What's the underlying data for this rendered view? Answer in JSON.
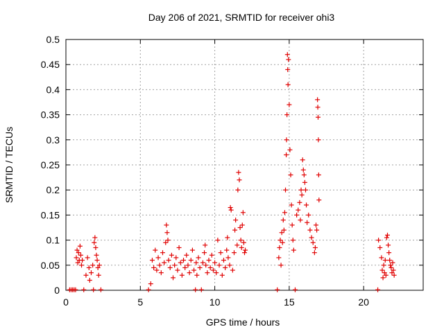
{
  "chart_data": {
    "type": "scatter",
    "title": "Day 206 of 2021, SRMTID for receiver ohi3",
    "xlabel": "GPS time / hours",
    "ylabel": "SRMTID / TECUs",
    "xlim": [
      0,
      24
    ],
    "ylim": [
      0,
      0.5
    ],
    "grid": true,
    "legend": "none",
    "marker": "+",
    "x_ticks": [
      0,
      5,
      10,
      15,
      20
    ],
    "y_ticks": [
      0,
      0.05,
      0.1,
      0.15,
      0.2,
      0.25,
      0.3,
      0.35,
      0.4,
      0.45,
      0.5
    ],
    "x_tick_labels": [
      "0",
      "5",
      "10",
      "15",
      "20"
    ],
    "y_tick_labels": [
      "0",
      "0.05",
      "0.1",
      "0.15",
      "0.2",
      "0.25",
      "0.3",
      "0.35",
      "0.4",
      "0.45",
      "0.5"
    ],
    "series": [
      {
        "name": "SRMTID",
        "color": "#e00000",
        "points": [
          [
            0.25,
            0.001
          ],
          [
            0.35,
            0.001
          ],
          [
            0.45,
            0.001
          ],
          [
            0.55,
            0.001
          ],
          [
            0.65,
            0.001
          ],
          [
            0.7,
            0.065
          ],
          [
            0.75,
            0.08
          ],
          [
            0.8,
            0.055
          ],
          [
            0.85,
            0.075
          ],
          [
            0.9,
            0.06
          ],
          [
            0.95,
            0.088
          ],
          [
            1.0,
            0.07
          ],
          [
            1.05,
            0.05
          ],
          [
            1.1,
            0.06
          ],
          [
            1.2,
            0.001
          ],
          [
            1.35,
            0.03
          ],
          [
            1.45,
            0.065
          ],
          [
            1.55,
            0.045
          ],
          [
            1.6,
            0.02
          ],
          [
            1.7,
            0.035
          ],
          [
            1.8,
            0.05
          ],
          [
            1.85,
            0.001
          ],
          [
            1.9,
            0.095
          ],
          [
            1.95,
            0.105
          ],
          [
            2.0,
            0.085
          ],
          [
            2.05,
            0.07
          ],
          [
            2.1,
            0.06
          ],
          [
            2.15,
            0.045
          ],
          [
            2.2,
            0.03
          ],
          [
            2.25,
            0.05
          ],
          [
            2.35,
            0.001
          ],
          [
            5.55,
            0.001
          ],
          [
            5.7,
            0.013
          ],
          [
            5.8,
            0.06
          ],
          [
            5.9,
            0.045
          ],
          [
            6.0,
            0.08
          ],
          [
            6.1,
            0.04
          ],
          [
            6.2,
            0.065
          ],
          [
            6.3,
            0.05
          ],
          [
            6.4,
            0.035
          ],
          [
            6.5,
            0.075
          ],
          [
            6.6,
            0.055
          ],
          [
            6.7,
            0.095
          ],
          [
            6.75,
            0.13
          ],
          [
            6.8,
            0.115
          ],
          [
            6.85,
            0.1
          ],
          [
            6.9,
            0.06
          ],
          [
            7.0,
            0.045
          ],
          [
            7.1,
            0.07
          ],
          [
            7.2,
            0.025
          ],
          [
            7.3,
            0.05
          ],
          [
            7.4,
            0.065
          ],
          [
            7.5,
            0.04
          ],
          [
            7.6,
            0.085
          ],
          [
            7.7,
            0.055
          ],
          [
            7.8,
            0.03
          ],
          [
            7.9,
            0.06
          ],
          [
            8.0,
            0.045
          ],
          [
            8.1,
            0.07
          ],
          [
            8.2,
            0.05
          ],
          [
            8.3,
            0.035
          ],
          [
            8.4,
            0.06
          ],
          [
            8.5,
            0.08
          ],
          [
            8.6,
            0.04
          ],
          [
            8.7,
            0.001
          ],
          [
            8.75,
            0.055
          ],
          [
            8.8,
            0.03
          ],
          [
            8.9,
            0.065
          ],
          [
            9.0,
            0.045
          ],
          [
            9.1,
            0.001
          ],
          [
            9.2,
            0.055
          ],
          [
            9.3,
            0.075
          ],
          [
            9.35,
            0.09
          ],
          [
            9.4,
            0.05
          ],
          [
            9.5,
            0.035
          ],
          [
            9.6,
            0.06
          ],
          [
            9.7,
            0.045
          ],
          [
            9.8,
            0.07
          ],
          [
            9.9,
            0.04
          ],
          [
            10.0,
            0.055
          ],
          [
            10.1,
            0.035
          ],
          [
            10.2,
            0.1
          ],
          [
            10.3,
            0.05
          ],
          [
            10.4,
            0.075
          ],
          [
            10.5,
            0.03
          ],
          [
            10.6,
            0.06
          ],
          [
            10.7,
            0.045
          ],
          [
            10.8,
            0.08
          ],
          [
            10.85,
            0.105
          ],
          [
            10.9,
            0.065
          ],
          [
            11.0,
            0.05
          ],
          [
            11.05,
            0.165
          ],
          [
            11.1,
            0.16
          ],
          [
            11.2,
            0.04
          ],
          [
            11.3,
            0.075
          ],
          [
            11.35,
            0.12
          ],
          [
            11.4,
            0.14
          ],
          [
            11.5,
            0.09
          ],
          [
            11.55,
            0.2
          ],
          [
            11.6,
            0.235
          ],
          [
            11.65,
            0.22
          ],
          [
            11.7,
            0.125
          ],
          [
            11.75,
            0.1
          ],
          [
            11.8,
            0.085
          ],
          [
            11.85,
            0.13
          ],
          [
            11.9,
            0.155
          ],
          [
            11.95,
            0.095
          ],
          [
            12.0,
            0.075
          ],
          [
            12.05,
            0.08
          ],
          [
            14.2,
            0.001
          ],
          [
            14.3,
            0.065
          ],
          [
            14.35,
            0.085
          ],
          [
            14.4,
            0.1
          ],
          [
            14.45,
            0.05
          ],
          [
            14.5,
            0.115
          ],
          [
            14.55,
            0.095
          ],
          [
            14.6,
            0.14
          ],
          [
            14.65,
            0.12
          ],
          [
            14.7,
            0.155
          ],
          [
            14.75,
            0.2
          ],
          [
            14.8,
            0.27
          ],
          [
            14.82,
            0.3
          ],
          [
            14.85,
            0.35
          ],
          [
            14.88,
            0.47
          ],
          [
            14.9,
            0.44
          ],
          [
            14.92,
            0.41
          ],
          [
            14.95,
            0.46
          ],
          [
            15.0,
            0.37
          ],
          [
            15.05,
            0.28
          ],
          [
            15.1,
            0.23
          ],
          [
            15.15,
            0.17
          ],
          [
            15.2,
            0.13
          ],
          [
            15.25,
            0.1
          ],
          [
            15.3,
            0.08
          ],
          [
            15.4,
            0.001
          ],
          [
            15.5,
            0.15
          ],
          [
            15.6,
            0.16
          ],
          [
            15.7,
            0.175
          ],
          [
            15.75,
            0.14
          ],
          [
            15.8,
            0.2
          ],
          [
            15.85,
            0.19
          ],
          [
            15.9,
            0.26
          ],
          [
            15.95,
            0.24
          ],
          [
            16.0,
            0.23
          ],
          [
            16.05,
            0.215
          ],
          [
            16.1,
            0.2
          ],
          [
            16.15,
            0.17
          ],
          [
            16.2,
            0.135
          ],
          [
            16.3,
            0.15
          ],
          [
            16.4,
            0.12
          ],
          [
            16.5,
            0.105
          ],
          [
            16.6,
            0.095
          ],
          [
            16.7,
            0.075
          ],
          [
            16.75,
            0.085
          ],
          [
            16.8,
            0.13
          ],
          [
            16.85,
            0.12
          ],
          [
            16.9,
            0.38
          ],
          [
            16.92,
            0.365
          ],
          [
            16.94,
            0.345
          ],
          [
            16.96,
            0.3
          ],
          [
            16.98,
            0.23
          ],
          [
            17.0,
            0.18
          ],
          [
            20.95,
            0.001
          ],
          [
            21.0,
            0.1
          ],
          [
            21.1,
            0.085
          ],
          [
            21.2,
            0.065
          ],
          [
            21.25,
            0.04
          ],
          [
            21.3,
            0.025
          ],
          [
            21.35,
            0.05
          ],
          [
            21.4,
            0.035
          ],
          [
            21.45,
            0.06
          ],
          [
            21.5,
            0.03
          ],
          [
            21.55,
            0.105
          ],
          [
            21.6,
            0.11
          ],
          [
            21.65,
            0.09
          ],
          [
            21.7,
            0.075
          ],
          [
            21.75,
            0.06
          ],
          [
            21.8,
            0.05
          ],
          [
            21.85,
            0.045
          ],
          [
            21.9,
            0.035
          ],
          [
            21.95,
            0.055
          ],
          [
            22.0,
            0.04
          ],
          [
            22.05,
            0.03
          ]
        ]
      }
    ]
  }
}
